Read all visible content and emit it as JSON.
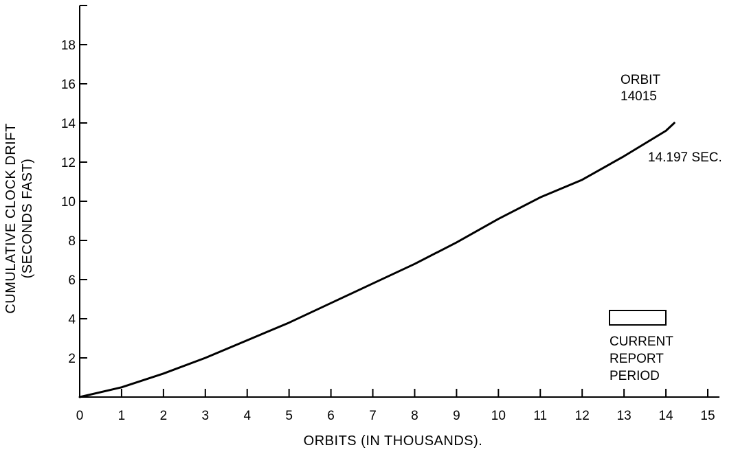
{
  "chart_data": {
    "type": "line",
    "title": "",
    "xlabel": "ORBITS (IN THOUSANDS).",
    "ylabel": "CUMULATIVE CLOCK DRIFT",
    "ylabel_sub": "(SECONDS FAST)",
    "xlim": [
      0,
      15
    ],
    "ylim": [
      0,
      20
    ],
    "x_ticks": [
      0,
      1,
      2,
      3,
      4,
      5,
      6,
      7,
      8,
      9,
      10,
      11,
      12,
      13,
      14,
      15
    ],
    "y_ticks": [
      2,
      4,
      6,
      8,
      10,
      12,
      14,
      16,
      18
    ],
    "grid": false,
    "series": [
      {
        "x": [
          0,
          1,
          2,
          3,
          4,
          5,
          6,
          7,
          8,
          9,
          10,
          11,
          12,
          13,
          14,
          14.2
        ],
        "y": [
          0,
          0.5,
          1.2,
          2.0,
          2.9,
          3.8,
          4.8,
          5.8,
          6.8,
          7.9,
          9.1,
          10.2,
          11.1,
          12.3,
          13.6,
          14.0
        ]
      }
    ],
    "annotations": {
      "orbit_line1": "ORBIT",
      "orbit_line2": "14015",
      "drift_value": "14.197 SEC.",
      "legend_line1": "CURRENT",
      "legend_line2": "REPORT",
      "legend_line3": "PERIOD"
    }
  }
}
